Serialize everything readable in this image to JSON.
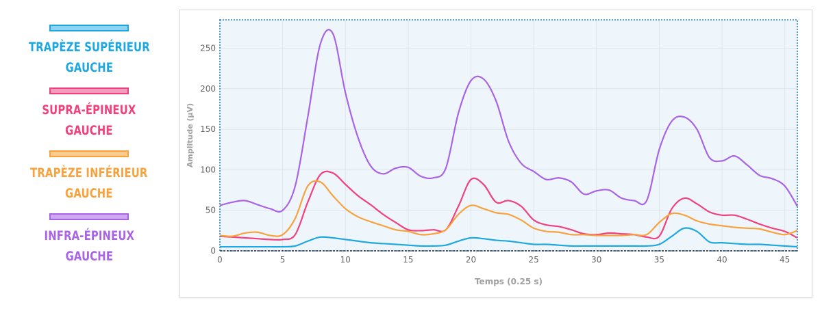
{
  "legend": [
    {
      "label_line1": "TRAPÈZE SUPÉRIEUR",
      "label_line2": "GAUCHE",
      "color": "#1fa8e0"
    },
    {
      "label_line1": "SUPRA-ÉPINEUX",
      "label_line2": "GAUCHE",
      "color": "#f0407e"
    },
    {
      "label_line1": "TRAPÈZE INFÉRIEUR",
      "label_line2": "GAUCHE",
      "color": "#f7a23c"
    },
    {
      "label_line1": "INFRA-ÉPINEUX",
      "label_line2": "GAUCHE",
      "color": "#a963e6"
    }
  ],
  "chart_data": {
    "type": "line",
    "xlabel": "Temps (0.25 s)",
    "ylabel": "Amplitude (µV)",
    "xlim": [
      0,
      46
    ],
    "ylim": [
      0,
      285
    ],
    "x_ticks": [
      0,
      5,
      10,
      15,
      20,
      25,
      30,
      35,
      40,
      45
    ],
    "y_ticks": [
      0,
      50,
      100,
      150,
      200,
      250
    ],
    "grid": true,
    "background_color": "#eef5fb",
    "series": [
      {
        "name": "TRAPÈZE SUPÉRIEUR GAUCHE",
        "color": "#1fa8e0",
        "x": [
          0,
          1,
          2,
          3,
          4,
          5,
          6,
          7,
          8,
          9,
          10,
          11,
          12,
          13,
          14,
          15,
          16,
          17,
          18,
          19,
          20,
          21,
          22,
          23,
          24,
          25,
          26,
          27,
          28,
          29,
          30,
          31,
          32,
          33,
          34,
          35,
          36,
          37,
          38,
          39,
          40,
          41,
          42,
          43,
          44,
          45,
          46
        ],
        "y": [
          5,
          5,
          5,
          5,
          5,
          5,
          6,
          12,
          17,
          16,
          14,
          12,
          10,
          9,
          8,
          7,
          6,
          6,
          7,
          12,
          16,
          15,
          13,
          12,
          10,
          8,
          8,
          7,
          6,
          6,
          6,
          6,
          6,
          6,
          6,
          8,
          18,
          28,
          24,
          11,
          10,
          9,
          8,
          8,
          7,
          6,
          5
        ]
      },
      {
        "name": "SUPRA-ÉPINEUX GAUCHE",
        "color": "#f0407e",
        "x": [
          0,
          1,
          2,
          3,
          4,
          5,
          6,
          7,
          8,
          9,
          10,
          11,
          12,
          13,
          14,
          15,
          16,
          17,
          18,
          19,
          20,
          21,
          22,
          23,
          24,
          25,
          26,
          27,
          28,
          29,
          30,
          31,
          32,
          33,
          34,
          35,
          36,
          37,
          38,
          39,
          40,
          41,
          42,
          43,
          44,
          45,
          46
        ],
        "y": [
          18,
          17,
          16,
          15,
          14,
          14,
          20,
          60,
          94,
          96,
          82,
          68,
          57,
          45,
          35,
          26,
          25,
          26,
          26,
          55,
          88,
          82,
          60,
          62,
          55,
          38,
          32,
          30,
          26,
          21,
          20,
          22,
          21,
          20,
          17,
          18,
          52,
          65,
          58,
          48,
          44,
          44,
          39,
          33,
          28,
          24,
          16
        ]
      },
      {
        "name": "TRAPÈZE INFÉRIEUR GAUCHE",
        "color": "#f7a23c",
        "x": [
          0,
          1,
          2,
          3,
          4,
          5,
          6,
          7,
          8,
          9,
          10,
          11,
          12,
          13,
          14,
          15,
          16,
          17,
          18,
          19,
          20,
          21,
          22,
          23,
          24,
          25,
          26,
          27,
          28,
          29,
          30,
          31,
          32,
          33,
          34,
          35,
          36,
          37,
          38,
          39,
          40,
          41,
          42,
          43,
          44,
          45,
          46
        ],
        "y": [
          19,
          18,
          22,
          23,
          19,
          20,
          40,
          80,
          85,
          68,
          52,
          42,
          36,
          31,
          26,
          24,
          20,
          21,
          26,
          45,
          56,
          52,
          47,
          45,
          38,
          28,
          24,
          23,
          20,
          20,
          19,
          19,
          19,
          20,
          20,
          35,
          46,
          44,
          37,
          33,
          31,
          29,
          28,
          27,
          23,
          20,
          25
        ]
      },
      {
        "name": "INFRA-ÉPINEUX GAUCHE",
        "color": "#a963e6",
        "x": [
          0,
          1,
          2,
          3,
          4,
          5,
          6,
          7,
          8,
          9,
          10,
          11,
          12,
          13,
          14,
          15,
          16,
          17,
          18,
          19,
          20,
          21,
          22,
          23,
          24,
          25,
          26,
          27,
          28,
          29,
          30,
          31,
          32,
          33,
          34,
          35,
          36,
          37,
          38,
          39,
          40,
          41,
          42,
          43,
          44,
          45,
          46
        ],
        "y": [
          56,
          60,
          62,
          57,
          52,
          50,
          80,
          165,
          255,
          268,
          195,
          140,
          105,
          95,
          102,
          103,
          92,
          90,
          102,
          170,
          210,
          212,
          185,
          135,
          108,
          98,
          88,
          90,
          85,
          70,
          74,
          75,
          65,
          62,
          62,
          125,
          160,
          165,
          150,
          115,
          111,
          117,
          106,
          93,
          89,
          80,
          55
        ]
      }
    ]
  }
}
